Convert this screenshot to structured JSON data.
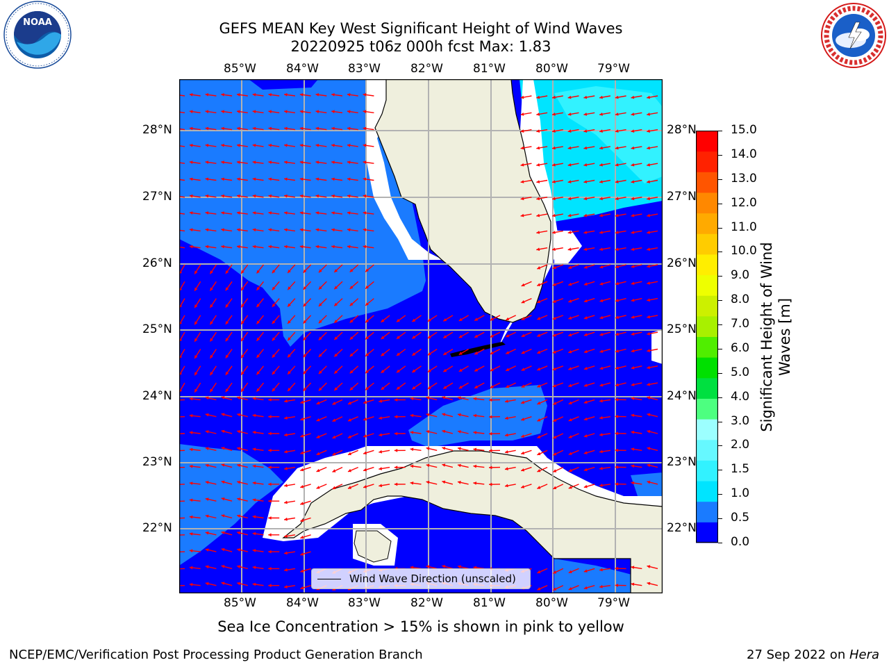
{
  "title_line1": "GEFS MEAN Key West Significant Height of Wind Waves",
  "title_line2": "20220925 t06z 000h fcst   Max: 1.83",
  "lon_ticks": [
    "85°W",
    "84°W",
    "83°W",
    "82°W",
    "81°W",
    "80°W",
    "79°W"
  ],
  "lat_ticks": [
    "28°N",
    "27°N",
    "26°N",
    "25°N",
    "24°N",
    "23°N",
    "22°N"
  ],
  "legend_label": "Wind Wave Direction (unscaled)",
  "subnote": "Sea Ice Concentration > 15% is shown in pink to yellow",
  "footer_left": "NCEP/EMC/Verification Post Processing Product Generation Branch",
  "footer_date": "27 Sep 2022 on ",
  "footer_host": "Hera",
  "colorbar": {
    "label_line1": "Significant Height of Wind",
    "label_line2": "Waves [m]",
    "ticks": [
      "15.0",
      "14.0",
      "13.0",
      "12.0",
      "11.0",
      "10.0",
      "9.0",
      "8.0",
      "7.0",
      "6.0",
      "5.0",
      "4.0",
      "3.0",
      "2.0",
      "1.5",
      "1.0",
      "0.5",
      "0.0"
    ],
    "colors": [
      "#0000ff",
      "#1a7bff",
      "#00e4ff",
      "#32f2ff",
      "#66f8ff",
      "#9cffff",
      "#4dff80",
      "#00e040",
      "#00e000",
      "#50ee00",
      "#a8f000",
      "#ccf000",
      "#eeff00",
      "#ffee00",
      "#ffcc00",
      "#ffaa00",
      "#ff8800",
      "#ff5500",
      "#ff2200",
      "#ff0000"
    ]
  },
  "colors": {
    "land": "#efefdd",
    "grid": "#b2b2b2",
    "arrow": "#ff0000"
  },
  "logos": {
    "noaa": "NOAA",
    "nws": "NATIONAL WEATHER SERVICE"
  },
  "icons": [
    "noaa-logo-icon",
    "nws-logo-icon"
  ]
}
